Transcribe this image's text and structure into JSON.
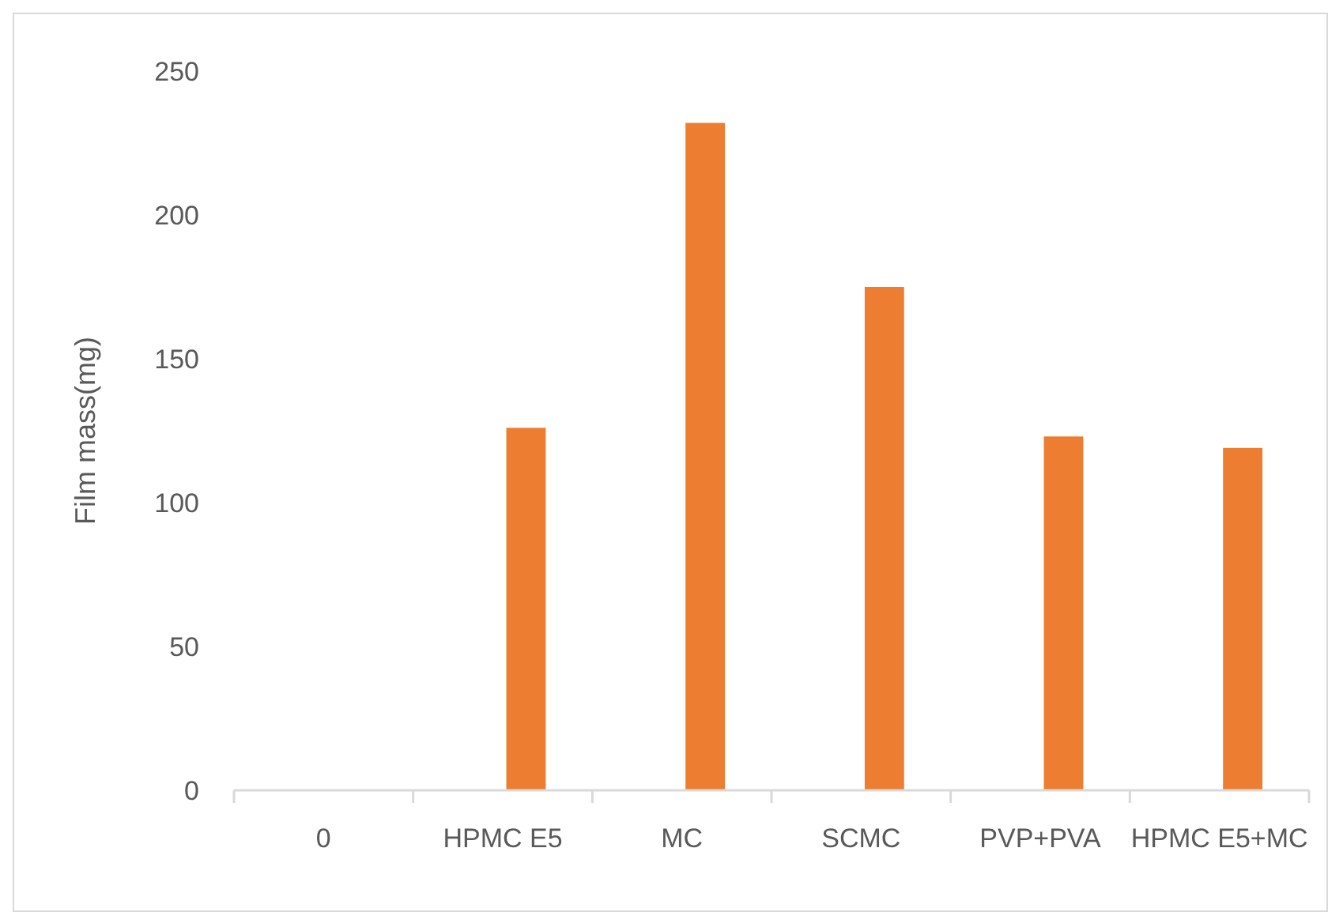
{
  "chart_data": {
    "type": "bar",
    "ylabel": "Film mass(mg)",
    "categories": [
      "0",
      "HPMC E5",
      "MC",
      "SCMC",
      "PVP+PVA",
      "HPMC E5+MC"
    ],
    "values": [
      null,
      126,
      232,
      175,
      123,
      119
    ],
    "color": "#ed7d31",
    "ylim": [
      0,
      250
    ],
    "yticks": [
      0,
      50,
      100,
      150,
      200,
      250
    ],
    "grid": false
  }
}
